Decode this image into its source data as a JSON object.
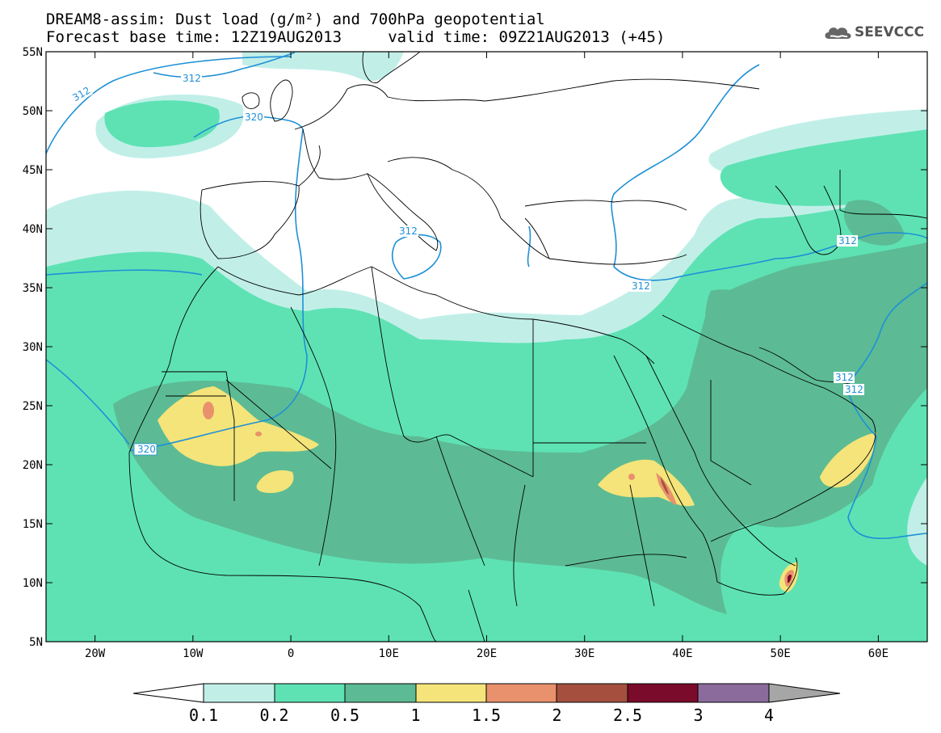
{
  "title": {
    "line1": "DREAM8-assim: Dust load (g/m²) and 700hPa geopotential",
    "line2": "Forecast base time: 12Z19AUG2013     valid time: 09Z21AUG2013 (+45)"
  },
  "logo": {
    "text": "SEEVCCC",
    "icon": "cloud-logo-icon"
  },
  "axes": {
    "lat_labels": [
      "55N",
      "50N",
      "45N",
      "40N",
      "35N",
      "30N",
      "25N",
      "20N",
      "15N",
      "10N",
      "5N"
    ],
    "lon_labels": [
      "20W",
      "10W",
      "0",
      "10E",
      "20E",
      "30E",
      "40E",
      "50E",
      "60E"
    ],
    "lon_range": [
      -25,
      65
    ],
    "lat_range": [
      5,
      55
    ]
  },
  "contour_labels": [
    "312",
    "312",
    "320",
    "312",
    "312",
    "312",
    "320",
    "312",
    "312"
  ],
  "colorbar": {
    "labels": [
      "0.1",
      "0.2",
      "0.5",
      "1",
      "1.5",
      "2",
      "2.5",
      "3",
      "4"
    ],
    "colors": {
      "under": "#ffffff",
      "c1": "#c1efe8",
      "c2": "#5ee2b4",
      "c3": "#5cbb94",
      "c4": "#f4e47a",
      "c5": "#e8916c",
      "c6": "#a5503e",
      "c7": "#7a0b2b",
      "c8": "#8b6b9c",
      "over": "#a6a6a6"
    }
  },
  "colors": {
    "contour": "#1e90d6",
    "border": "#000000"
  }
}
